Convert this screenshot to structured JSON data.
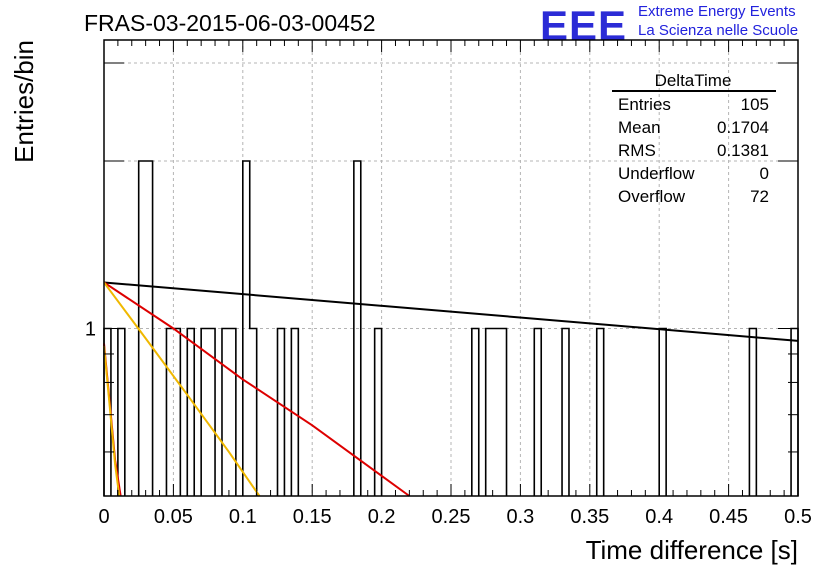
{
  "header": {
    "title": "FRAS-03-2015-06-03-00452",
    "logo_text": "EEE",
    "brand_line1": "Extreme Energy Events",
    "brand_line2": "La Scienza nelle Scuole"
  },
  "stats_box": {
    "title": "DeltaTime",
    "rows": [
      {
        "label": "Entries",
        "value": "105"
      },
      {
        "label": "Mean",
        "value": "0.1704"
      },
      {
        "label": "RMS",
        "value": "0.1381"
      },
      {
        "label": "Underflow",
        "value": "0"
      },
      {
        "label": "Overflow",
        "value": "72"
      }
    ]
  },
  "chart_data": {
    "type": "histogram",
    "xlabel": "Time difference [s]",
    "ylabel": "Entries/bin",
    "xlim": [
      0,
      0.5
    ],
    "y_scale": "log",
    "ylim": [
      0.5,
      3.3
    ],
    "x_ticks": [
      "0",
      "0.05",
      "0.1",
      "0.15",
      "0.2",
      "0.25",
      "0.3",
      "0.35",
      "0.4",
      "0.45",
      "0.5"
    ],
    "x_tick_values": [
      0,
      0.05,
      0.1,
      0.15,
      0.2,
      0.25,
      0.3,
      0.35,
      0.4,
      0.45,
      0.5
    ],
    "y_tick_labels": [
      {
        "value": 1,
        "label": "1"
      }
    ],
    "grid": true,
    "bin_width": 0.005,
    "bins": [
      {
        "x": 0.0,
        "count": 1
      },
      {
        "x": 0.01,
        "count": 1
      },
      {
        "x": 0.025,
        "count": 2
      },
      {
        "x": 0.03,
        "count": 2
      },
      {
        "x": 0.045,
        "count": 1
      },
      {
        "x": 0.05,
        "count": 1
      },
      {
        "x": 0.06,
        "count": 1
      },
      {
        "x": 0.07,
        "count": 1
      },
      {
        "x": 0.075,
        "count": 1
      },
      {
        "x": 0.085,
        "count": 1
      },
      {
        "x": 0.09,
        "count": 1
      },
      {
        "x": 0.1,
        "count": 2
      },
      {
        "x": 0.105,
        "count": 1
      },
      {
        "x": 0.125,
        "count": 1
      },
      {
        "x": 0.135,
        "count": 1
      },
      {
        "x": 0.18,
        "count": 2
      },
      {
        "x": 0.195,
        "count": 1
      },
      {
        "x": 0.265,
        "count": 1
      },
      {
        "x": 0.275,
        "count": 1
      },
      {
        "x": 0.28,
        "count": 1
      },
      {
        "x": 0.285,
        "count": 1
      },
      {
        "x": 0.31,
        "count": 1
      },
      {
        "x": 0.33,
        "count": 1
      },
      {
        "x": 0.355,
        "count": 1
      },
      {
        "x": 0.4,
        "count": 1
      },
      {
        "x": 0.465,
        "count": 1
      },
      {
        "x": 0.495,
        "count": 1
      }
    ],
    "fits": [
      {
        "color": "#000000",
        "points": [
          [
            0,
            1.21
          ],
          [
            0.5,
            0.95
          ]
        ]
      },
      {
        "color": "#dd0000",
        "points": [
          [
            0,
            1.21
          ],
          [
            0.05,
            1.0
          ],
          [
            0.1,
            0.81
          ],
          [
            0.15,
            0.67
          ],
          [
            0.22,
            0.5
          ]
        ]
      },
      {
        "color": "#f0b800",
        "points": [
          [
            0,
            1.21
          ],
          [
            0.03,
            0.96
          ],
          [
            0.06,
            0.76
          ],
          [
            0.09,
            0.6
          ],
          [
            0.112,
            0.5
          ]
        ]
      },
      {
        "color": "#dd0000",
        "points": [
          [
            0,
            0.94
          ],
          [
            0.004,
            0.74
          ],
          [
            0.008,
            0.58
          ],
          [
            0.012,
            0.5
          ]
        ]
      },
      {
        "color": "#f0b800",
        "points": [
          [
            0,
            0.93
          ],
          [
            0.004,
            0.73
          ],
          [
            0.008,
            0.57
          ],
          [
            0.011,
            0.5
          ]
        ]
      }
    ]
  }
}
